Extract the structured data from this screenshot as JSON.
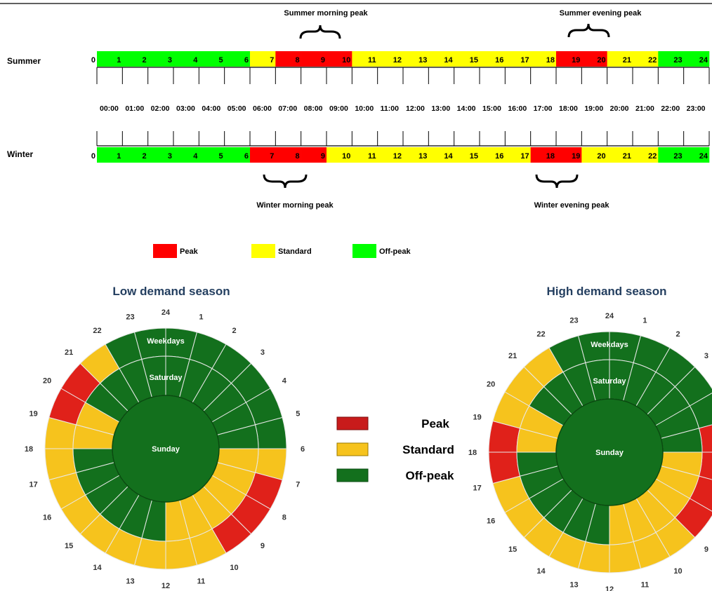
{
  "colors": {
    "peak": "#ff0000",
    "standard": "#ffff00",
    "offpeak": "#00ff00",
    "wheel_peak": "#e0211a",
    "wheel_standard": "#f6c31d",
    "wheel_offpeak": "#13701d",
    "title": "#243f60"
  },
  "bar_labels": {
    "summer": "Summer",
    "winter": "Winter"
  },
  "hour_numbers": [
    "0",
    "1",
    "2",
    "3",
    "4",
    "5",
    "6",
    "7",
    "8",
    "9",
    "10",
    "11",
    "12",
    "13",
    "14",
    "15",
    "16",
    "17",
    "18",
    "19",
    "20",
    "21",
    "22",
    "23",
    "24"
  ],
  "summer_categories": [
    "O",
    "O",
    "O",
    "O",
    "O",
    "O",
    "S",
    "P",
    "P",
    "P",
    "S",
    "S",
    "S",
    "S",
    "S",
    "S",
    "S",
    "S",
    "P",
    "P",
    "S",
    "S",
    "O",
    "O"
  ],
  "winter_categories": [
    "O",
    "O",
    "O",
    "O",
    "O",
    "O",
    "P",
    "P",
    "P",
    "S",
    "S",
    "S",
    "S",
    "S",
    "S",
    "S",
    "S",
    "P",
    "P",
    "S",
    "S",
    "S",
    "O",
    "O"
  ],
  "times": [
    "00:00",
    "01:00",
    "02:00",
    "03:00",
    "04:00",
    "05:00",
    "06:00",
    "07:00",
    "08:00",
    "09:00",
    "10:00",
    "11:00",
    "12:00",
    "13:00",
    "14:00",
    "15:00",
    "16:00",
    "17:00",
    "18:00",
    "19:00",
    "20:00",
    "21:00",
    "22:00",
    "23:00"
  ],
  "peak_labels": {
    "summer_morning": "Summer morning peak",
    "summer_evening": "Summer evening peak",
    "winter_morning": "Winter morning peak",
    "winter_evening": "Winter evening peak"
  },
  "legend_top": {
    "peak": "Peak",
    "standard": "Standard",
    "offpeak": "Off-peak"
  },
  "wheels": [
    {
      "title": "Low demand season",
      "weekdays": [
        "O",
        "O",
        "O",
        "O",
        "O",
        "O",
        "S",
        "P",
        "P",
        "P",
        "S",
        "S",
        "S",
        "S",
        "S",
        "S",
        "S",
        "S",
        "S",
        "P",
        "P",
        "S",
        "O",
        "O"
      ],
      "saturday": [
        "O",
        "O",
        "O",
        "O",
        "O",
        "O",
        "S",
        "S",
        "S",
        "S",
        "S",
        "S",
        "O",
        "O",
        "O",
        "O",
        "O",
        "O",
        "S",
        "S",
        "O",
        "O",
        "O",
        "O"
      ],
      "sunday": "O"
    },
    {
      "title": "High demand season",
      "weekdays": [
        "O",
        "O",
        "O",
        "O",
        "O",
        "P",
        "P",
        "P",
        "P",
        "S",
        "S",
        "S",
        "S",
        "S",
        "S",
        "S",
        "S",
        "P",
        "P",
        "S",
        "S",
        "S",
        "O",
        "O"
      ],
      "saturday": [
        "O",
        "O",
        "O",
        "O",
        "O",
        "O",
        "S",
        "S",
        "S",
        "S",
        "S",
        "S",
        "O",
        "O",
        "O",
        "O",
        "O",
        "O",
        "S",
        "S",
        "O",
        "O",
        "O",
        "O"
      ],
      "sunday": "O"
    }
  ],
  "wheel_ring_labels": {
    "weekdays": "Weekdays",
    "saturday": "Saturday",
    "sunday": "Sunday"
  },
  "wheel_hours": [
    "24",
    "1",
    "2",
    "3",
    "4",
    "5",
    "6",
    "7",
    "8",
    "9",
    "10",
    "11",
    "12",
    "13",
    "14",
    "15",
    "16",
    "17",
    "18",
    "19",
    "20",
    "21",
    "22",
    "23"
  ],
  "legend_middle": {
    "peak": "Peak",
    "standard": "Standard",
    "offpeak": "Off-peak"
  }
}
